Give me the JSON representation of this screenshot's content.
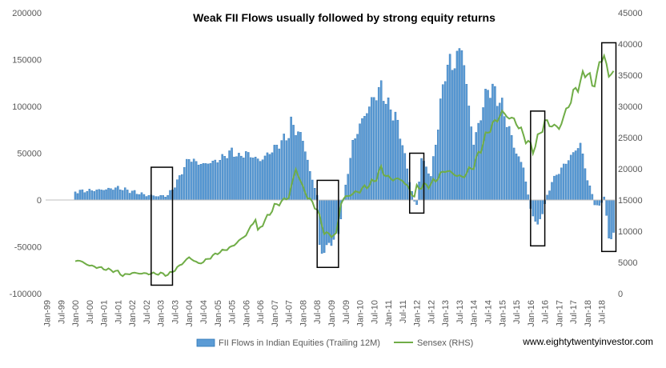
{
  "chart_data": {
    "type": "bar+line",
    "title": "Weak FII Flows usually followed by strong equity returns",
    "watermark": "www.eightytwentyinvestor.com",
    "y_left": {
      "min": -100000,
      "max": 200000,
      "step": 50000,
      "tick_labels": [
        "-100000",
        "-50000",
        "0",
        "50000",
        "100000",
        "150000",
        "200000"
      ]
    },
    "y_right": {
      "min": 0,
      "max": 45000,
      "step": 5000,
      "tick_labels": [
        "0",
        "5000",
        "10000",
        "15000",
        "20000",
        "25000",
        "30000",
        "35000",
        "40000",
        "45000"
      ]
    },
    "x_tick_labels": [
      "Jan-99",
      "Jul-99",
      "Jan-00",
      "Jul-00",
      "Jan-01",
      "Jul-01",
      "Jan-02",
      "Jul-02",
      "Jan-03",
      "Jul-03",
      "Jan-04",
      "Jul-04",
      "Jan-05",
      "Jul-05",
      "Jan-06",
      "Jul-06",
      "Jan-07",
      "Jul-07",
      "Jan-08",
      "Jul-08",
      "Jan-09",
      "Jul-09",
      "Jan-10",
      "Jul-10",
      "Jan-11",
      "Jul-11",
      "Jan-12",
      "Jul-12",
      "Jan-13",
      "Jul-13",
      "Jan-14",
      "Jul-14",
      "Jan-15",
      "Jul-15",
      "Jan-16",
      "Jul-16",
      "Jan-17",
      "Jul-17",
      "Jan-18",
      "Jul-18"
    ],
    "start_month": "Jan-00",
    "series": [
      {
        "name": "FII Flows in Indian Equities (Trailing 12M)",
        "kind": "bar",
        "axis": "left",
        "color": "#5b9bd5",
        "points": [
          [
            "Jan-00",
            9000
          ],
          [
            "Jul-00",
            10000
          ],
          [
            "Jan-01",
            11000
          ],
          [
            "Jul-01",
            13000
          ],
          [
            "Jan-02",
            9000
          ],
          [
            "Jul-02",
            5000
          ],
          [
            "Jan-03",
            4000
          ],
          [
            "Apr-03",
            5000
          ],
          [
            "Jul-03",
            15000
          ],
          [
            "Oct-03",
            30000
          ],
          [
            "Jan-04",
            45000
          ],
          [
            "Apr-04",
            40000
          ],
          [
            "Jul-04",
            38000
          ],
          [
            "Jan-05",
            42000
          ],
          [
            "Jul-05",
            52000
          ],
          [
            "Oct-05",
            46000
          ],
          [
            "Jan-06",
            50000
          ],
          [
            "Jul-06",
            42000
          ],
          [
            "Jan-07",
            55000
          ],
          [
            "Jul-07",
            70000
          ],
          [
            "Aug-07",
            82000
          ],
          [
            "Jan-08",
            65000
          ],
          [
            "Apr-08",
            30000
          ],
          [
            "Jul-08",
            5000
          ],
          [
            "Aug-08",
            -50000
          ],
          [
            "Sep-08",
            -56000
          ],
          [
            "Jan-09",
            -45000
          ],
          [
            "Apr-09",
            -35000
          ],
          [
            "Jul-09",
            15000
          ],
          [
            "Oct-09",
            60000
          ],
          [
            "Jan-10",
            80000
          ],
          [
            "Jul-10",
            110000
          ],
          [
            "Oct-10",
            120000
          ],
          [
            "Jan-11",
            100000
          ],
          [
            "Apr-11",
            90000
          ],
          [
            "Jul-11",
            60000
          ],
          [
            "Oct-11",
            20000
          ],
          [
            "Dec-11",
            -2000
          ],
          [
            "Jan-12",
            -5000
          ],
          [
            "Mar-12",
            45000
          ],
          [
            "Jul-12",
            25000
          ],
          [
            "Oct-12",
            80000
          ],
          [
            "Jan-13",
            140000
          ],
          [
            "Jun-13",
            150000
          ],
          [
            "Aug-13",
            168000
          ],
          [
            "Oct-13",
            120000
          ],
          [
            "Jan-14",
            60000
          ],
          [
            "Jul-14",
            120000
          ],
          [
            "Oct-14",
            115000
          ],
          [
            "Jan-15",
            100000
          ],
          [
            "Jul-15",
            50000
          ],
          [
            "Oct-15",
            35000
          ],
          [
            "Jan-16",
            -10000
          ],
          [
            "Apr-16",
            -28000
          ],
          [
            "Jul-16",
            -5000
          ],
          [
            "Oct-16",
            20000
          ],
          [
            "Jan-17",
            30000
          ],
          [
            "Jul-17",
            50000
          ],
          [
            "Oct-17",
            60000
          ],
          [
            "Jan-18",
            22000
          ],
          [
            "Apr-18",
            -3000
          ],
          [
            "Jun-18",
            -8000
          ],
          [
            "Aug-18",
            5000
          ],
          [
            "Oct-18",
            -42000
          ],
          [
            "Dec-18",
            -35000
          ]
        ]
      },
      {
        "name": "Sensex (RHS)",
        "kind": "line",
        "axis": "right",
        "color": "#70ad47",
        "points": [
          [
            "Jan-00",
            5200
          ],
          [
            "Feb-00",
            5400
          ],
          [
            "Jul-00",
            4500
          ],
          [
            "Jan-01",
            4000
          ],
          [
            "Jul-01",
            3500
          ],
          [
            "Sep-01",
            2900
          ],
          [
            "Jan-02",
            3300
          ],
          [
            "Jul-02",
            3200
          ],
          [
            "Jan-03",
            3200
          ],
          [
            "Apr-03",
            3000
          ],
          [
            "Jul-03",
            3800
          ],
          [
            "Jan-04",
            5800
          ],
          [
            "May-04",
            4800
          ],
          [
            "Jul-04",
            5100
          ],
          [
            "Jan-05",
            6500
          ],
          [
            "Jul-05",
            7500
          ],
          [
            "Jan-06",
            9400
          ],
          [
            "May-06",
            12000
          ],
          [
            "Jun-06",
            10000
          ],
          [
            "Jan-07",
            14000
          ],
          [
            "Jul-07",
            15500
          ],
          [
            "Oct-07",
            20000
          ],
          [
            "Jan-08",
            17000
          ],
          [
            "Mar-08",
            15500
          ],
          [
            "Jul-08",
            13500
          ],
          [
            "Oct-08",
            9800
          ],
          [
            "Jan-09",
            9300
          ],
          [
            "Mar-09",
            9500
          ],
          [
            "May-09",
            14500
          ],
          [
            "Jul-09",
            15500
          ],
          [
            "Jan-10",
            16500
          ],
          [
            "Jul-10",
            18000
          ],
          [
            "Oct-10",
            20000
          ],
          [
            "Jan-11",
            18500
          ],
          [
            "Jul-11",
            18200
          ],
          [
            "Dec-11",
            15500
          ],
          [
            "Jan-12",
            17000
          ],
          [
            "Jul-12",
            17500
          ],
          [
            "Jan-13",
            19800
          ],
          [
            "Aug-13",
            18600
          ],
          [
            "Jan-14",
            20500
          ],
          [
            "Jul-14",
            26000
          ],
          [
            "Jan-15",
            29000
          ],
          [
            "Mar-15",
            28500
          ],
          [
            "Jul-15",
            27500
          ],
          [
            "Sep-15",
            26000
          ],
          [
            "Feb-16",
            23000
          ],
          [
            "Jul-16",
            27500
          ],
          [
            "Jan-17",
            26500
          ],
          [
            "Jul-17",
            32000
          ],
          [
            "Jan-18",
            35900
          ],
          [
            "Mar-18",
            33000
          ],
          [
            "Aug-18",
            38600
          ],
          [
            "Oct-18",
            34500
          ],
          [
            "Dec-18",
            36000
          ]
        ]
      }
    ],
    "highlight_boxes": [
      {
        "from": "Sep-02",
        "to": "Jun-03",
        "y_top": 35000,
        "y_bottom": -91000
      },
      {
        "from": "Jul-08",
        "to": "Apr-09",
        "y_top": 21000,
        "y_bottom": -72000
      },
      {
        "from": "Oct-11",
        "to": "Apr-12",
        "y_top": 50000,
        "y_bottom": -14000
      },
      {
        "from": "Jan-16",
        "to": "Jul-16",
        "y_top": 95000,
        "y_bottom": -49000
      },
      {
        "from": "Jul-18",
        "to": "Jan-19",
        "y_top": 168000,
        "y_bottom": -55000
      }
    ],
    "legend": {
      "placement": "bottom"
    }
  }
}
